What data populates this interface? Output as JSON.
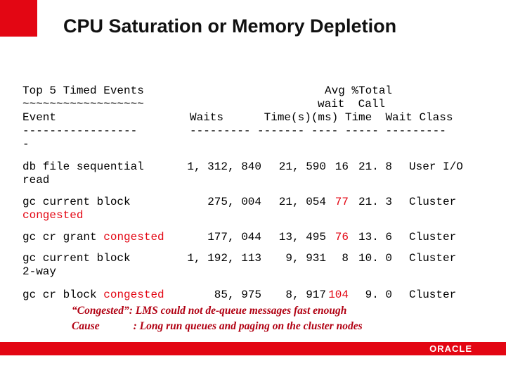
{
  "slide": {
    "title": "CPU Saturation or Memory Depletion",
    "brand_color": "#e30613",
    "oracle_logo": "ORACLE"
  },
  "report": {
    "header_left_1": "Top 5 Timed Events",
    "header_left_2": "~~~~~~~~~~~~~~~~~~",
    "header_left_3": "Event",
    "header_left_4": "-----------------",
    "header_left_5": "-",
    "header_right_1": "Avg %Total",
    "header_right_2": "wait  Call",
    "header_right_3": "Waits      Time(s)(ms) Time  Wait Class",
    "header_right_4": "--------- ------- ---- ----- ---------",
    "rows": [
      {
        "event_line1": "db file sequential",
        "event_line2": "read",
        "event_red": "",
        "waits": "1, 312, 840",
        "time_s": "21, 590",
        "avg_ms": "16",
        "total_call": "21. 8",
        "wait_class": "User I/O",
        "avg_red": false
      },
      {
        "event_line1": "gc current block",
        "event_line2": "",
        "event_red": "congested",
        "waits": "275, 004",
        "time_s": "21, 054",
        "avg_ms": "77",
        "total_call": "21. 3",
        "wait_class": "Cluster",
        "avg_red": true
      },
      {
        "event_line1": "gc cr grant",
        "event_line2": "",
        "event_red": "congested",
        "waits": "177, 044",
        "time_s": "13, 495",
        "avg_ms": "76",
        "total_call": "13. 6",
        "wait_class": "Cluster",
        "avg_red": true
      },
      {
        "event_line1": "gc current block",
        "event_line2": "2-way",
        "event_red": "",
        "waits": "1, 192, 113",
        "time_s": "9, 931",
        "avg_ms": "8",
        "total_call": "10. 0",
        "wait_class": "Cluster",
        "avg_red": false
      },
      {
        "event_line1": "gc cr block",
        "event_line2": "",
        "event_red": "congested",
        "waits": "85, 975",
        "time_s": "8, 917",
        "avg_ms": "104",
        "total_call": "9. 0",
        "wait_class": "Cluster",
        "avg_red": true
      }
    ]
  },
  "notes": {
    "line1": "“Congested”: LMS could not de-queue messages fast enough",
    "line2_label": "Cause",
    "line2_text": ": Long run queues and paging on the cluster nodes"
  }
}
